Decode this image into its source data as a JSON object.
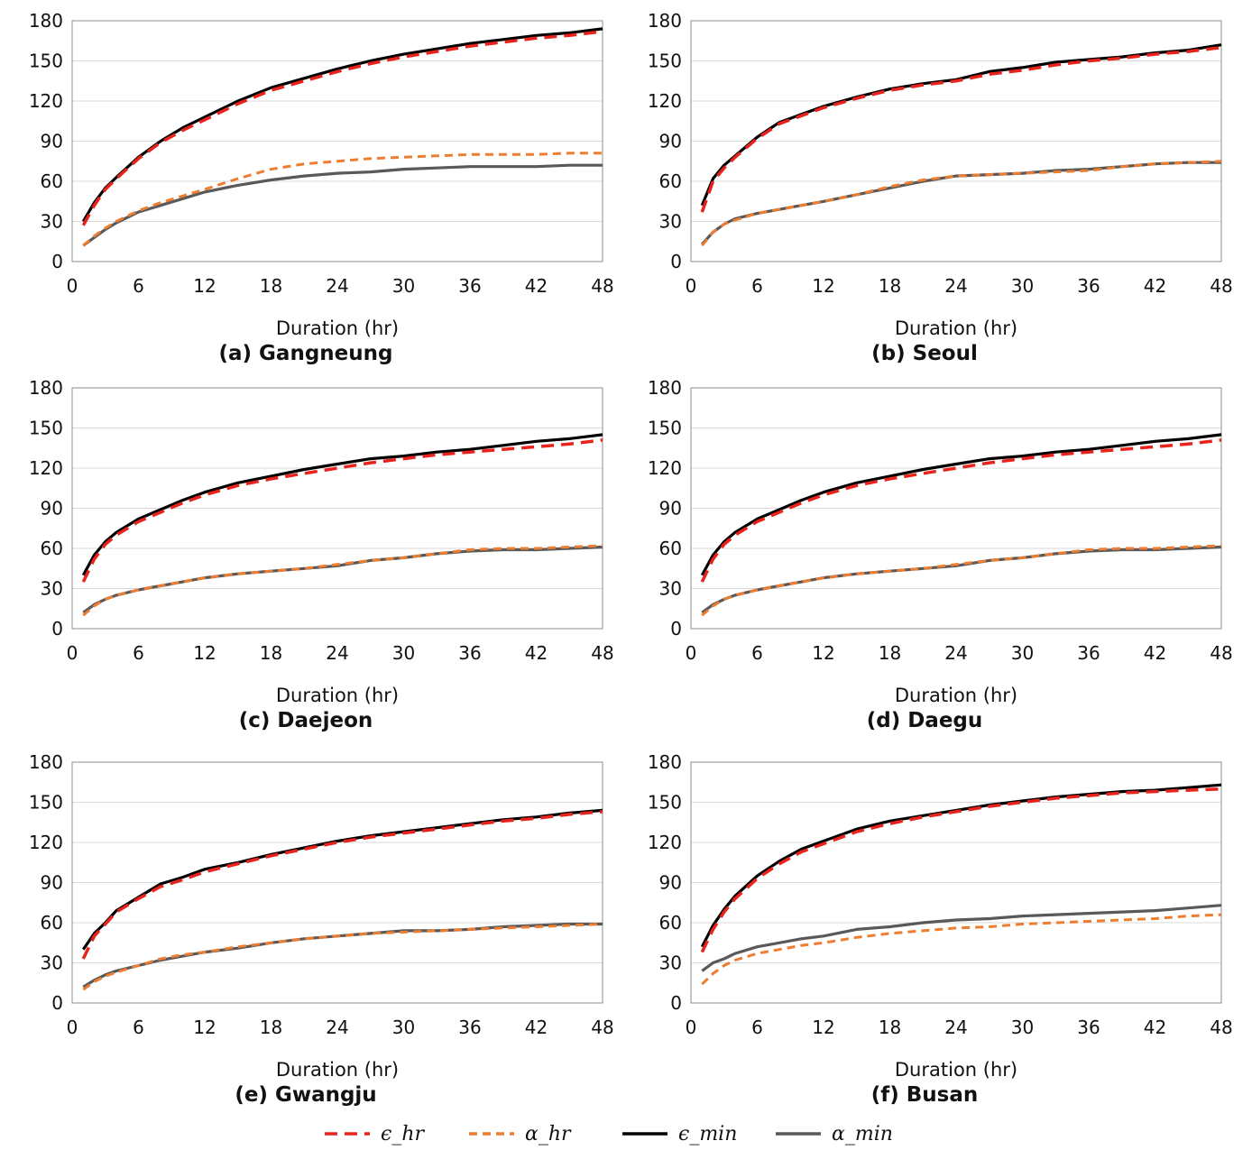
{
  "legend": {
    "items": [
      {
        "label": "ϵ_hr",
        "series": "eps_hr"
      },
      {
        "label": "α_hr",
        "series": "alpha_hr"
      },
      {
        "label": "ϵ_min",
        "series": "eps_min"
      },
      {
        "label": "α_min",
        "series": "alpha_min"
      }
    ],
    "placement": "bottom"
  },
  "series_styles": {
    "eps_hr": {
      "color": "#e8231c",
      "dash": "dashed"
    },
    "alpha_hr": {
      "color": "#ed7d31",
      "dash": "dashed"
    },
    "eps_min": {
      "color": "#000000",
      "dash": "solid"
    },
    "alpha_min": {
      "color": "#595959",
      "dash": "solid"
    }
  },
  "chart_data": [
    {
      "type": "line",
      "title": "(a) Gangneung",
      "xlabel": "Duration (hr)",
      "ylabel": "",
      "xlim": [
        0,
        48
      ],
      "ylim": [
        0,
        180
      ],
      "xticks": [
        0,
        6,
        12,
        18,
        24,
        30,
        36,
        42,
        48
      ],
      "yticks": [
        0,
        30,
        60,
        90,
        120,
        150,
        180
      ],
      "grid": true,
      "x": [
        1,
        2,
        3,
        4,
        6,
        8,
        10,
        12,
        15,
        18,
        21,
        24,
        27,
        30,
        33,
        36,
        39,
        42,
        45,
        48
      ],
      "series": [
        {
          "key": "eps_hr",
          "values": [
            27,
            42,
            54,
            62,
            77,
            89,
            98,
            106,
            118,
            128,
            135,
            142,
            148,
            153,
            157,
            161,
            164,
            167,
            169,
            172
          ]
        },
        {
          "key": "alpha_hr",
          "values": [
            12,
            19,
            25,
            30,
            38,
            44,
            49,
            54,
            62,
            69,
            73,
            75,
            77,
            78,
            79,
            80,
            80,
            80,
            81,
            81
          ]
        },
        {
          "key": "eps_min",
          "values": [
            30,
            44,
            55,
            63,
            78,
            90,
            100,
            108,
            120,
            130,
            137,
            144,
            150,
            155,
            159,
            163,
            166,
            169,
            171,
            174
          ]
        },
        {
          "key": "alpha_min",
          "values": [
            12,
            18,
            24,
            29,
            37,
            42,
            47,
            52,
            57,
            61,
            64,
            66,
            67,
            69,
            70,
            71,
            71,
            71,
            72,
            72
          ]
        }
      ]
    },
    {
      "type": "line",
      "title": "(b) Seoul",
      "xlabel": "Duration (hr)",
      "ylabel": "",
      "xlim": [
        0,
        48
      ],
      "ylim": [
        0,
        180
      ],
      "xticks": [
        0,
        6,
        12,
        18,
        24,
        30,
        36,
        42,
        48
      ],
      "yticks": [
        0,
        30,
        60,
        90,
        120,
        150,
        180
      ],
      "grid": true,
      "x": [
        1,
        2,
        3,
        4,
        6,
        8,
        10,
        12,
        15,
        18,
        21,
        24,
        27,
        30,
        33,
        36,
        39,
        42,
        45,
        48
      ],
      "series": [
        {
          "key": "eps_hr",
          "values": [
            37,
            60,
            70,
            78,
            92,
            103,
            109,
            115,
            122,
            128,
            132,
            135,
            140,
            143,
            147,
            150,
            152,
            155,
            157,
            160
          ]
        },
        {
          "key": "alpha_hr",
          "values": [
            12,
            22,
            28,
            31,
            36,
            39,
            42,
            45,
            50,
            56,
            61,
            64,
            65,
            66,
            67,
            68,
            71,
            73,
            74,
            75
          ]
        },
        {
          "key": "eps_min",
          "values": [
            42,
            62,
            72,
            79,
            93,
            104,
            110,
            116,
            123,
            129,
            133,
            136,
            142,
            145,
            149,
            151,
            153,
            156,
            158,
            162
          ]
        },
        {
          "key": "alpha_min",
          "values": [
            13,
            22,
            28,
            32,
            36,
            39,
            42,
            45,
            50,
            55,
            60,
            64,
            65,
            66,
            68,
            69,
            71,
            73,
            74,
            74
          ]
        }
      ]
    },
    {
      "type": "line",
      "title": "(c) Daejeon",
      "xlabel": "Duration (hr)",
      "ylabel": "",
      "xlim": [
        0,
        48
      ],
      "ylim": [
        0,
        180
      ],
      "xticks": [
        0,
        6,
        12,
        18,
        24,
        30,
        36,
        42,
        48
      ],
      "yticks": [
        0,
        30,
        60,
        90,
        120,
        150,
        180
      ],
      "grid": true,
      "x": [
        1,
        2,
        3,
        4,
        6,
        8,
        10,
        12,
        15,
        18,
        21,
        24,
        27,
        30,
        33,
        36,
        39,
        42,
        45,
        48
      ],
      "series": [
        {
          "key": "eps_hr",
          "values": [
            35,
            52,
            63,
            70,
            80,
            87,
            94,
            100,
            107,
            112,
            116,
            120,
            124,
            127,
            130,
            132,
            134,
            136,
            138,
            141
          ]
        },
        {
          "key": "alpha_hr",
          "values": [
            10,
            17,
            22,
            25,
            29,
            32,
            35,
            38,
            41,
            43,
            45,
            48,
            51,
            53,
            56,
            59,
            60,
            60,
            61,
            62
          ]
        },
        {
          "key": "eps_min",
          "values": [
            40,
            55,
            65,
            72,
            82,
            89,
            96,
            102,
            109,
            114,
            119,
            123,
            127,
            129,
            132,
            134,
            137,
            140,
            142,
            145
          ]
        },
        {
          "key": "alpha_min",
          "values": [
            12,
            18,
            22,
            25,
            29,
            32,
            35,
            38,
            41,
            43,
            45,
            47,
            51,
            53,
            56,
            58,
            59,
            59,
            60,
            61
          ]
        }
      ]
    },
    {
      "type": "line",
      "title": "(d) Daegu",
      "xlabel": "Duration (hr)",
      "ylabel": "",
      "xlim": [
        0,
        48
      ],
      "ylim": [
        0,
        180
      ],
      "xticks": [
        0,
        6,
        12,
        18,
        24,
        30,
        36,
        42,
        48
      ],
      "yticks": [
        0,
        30,
        60,
        90,
        120,
        150,
        180
      ],
      "grid": true,
      "x": [
        1,
        2,
        3,
        4,
        6,
        8,
        10,
        12,
        15,
        18,
        21,
        24,
        27,
        30,
        33,
        36,
        39,
        42,
        45,
        48
      ],
      "series": [
        {
          "key": "eps_hr",
          "values": [
            35,
            52,
            63,
            70,
            80,
            87,
            94,
            100,
            107,
            112,
            116,
            120,
            124,
            127,
            130,
            132,
            134,
            136,
            138,
            141
          ]
        },
        {
          "key": "alpha_hr",
          "values": [
            10,
            17,
            22,
            25,
            29,
            32,
            35,
            38,
            41,
            43,
            45,
            48,
            51,
            53,
            56,
            59,
            60,
            60,
            61,
            62
          ]
        },
        {
          "key": "eps_min",
          "values": [
            40,
            55,
            65,
            72,
            82,
            89,
            96,
            102,
            109,
            114,
            119,
            123,
            127,
            129,
            132,
            134,
            137,
            140,
            142,
            145
          ]
        },
        {
          "key": "alpha_min",
          "values": [
            12,
            18,
            22,
            25,
            29,
            32,
            35,
            38,
            41,
            43,
            45,
            47,
            51,
            53,
            56,
            58,
            59,
            59,
            60,
            61
          ]
        }
      ]
    },
    {
      "type": "line",
      "title": "(e) Gwangju",
      "xlabel": "Duration (hr)",
      "ylabel": "",
      "xlim": [
        0,
        48
      ],
      "ylim": [
        0,
        180
      ],
      "xticks": [
        0,
        6,
        12,
        18,
        24,
        30,
        36,
        42,
        48
      ],
      "yticks": [
        0,
        30,
        60,
        90,
        120,
        150,
        180
      ],
      "grid": true,
      "x": [
        1,
        2,
        3,
        4,
        6,
        8,
        10,
        12,
        15,
        18,
        21,
        24,
        27,
        30,
        33,
        36,
        39,
        42,
        45,
        48
      ],
      "series": [
        {
          "key": "eps_hr",
          "values": [
            33,
            50,
            59,
            68,
            78,
            87,
            92,
            98,
            104,
            110,
            115,
            120,
            124,
            127,
            130,
            133,
            136,
            138,
            141,
            143
          ]
        },
        {
          "key": "alpha_hr",
          "values": [
            10,
            16,
            20,
            23,
            28,
            33,
            36,
            38,
            42,
            45,
            48,
            50,
            52,
            53,
            54,
            55,
            56,
            57,
            58,
            59
          ]
        },
        {
          "key": "eps_min",
          "values": [
            40,
            52,
            60,
            69,
            79,
            89,
            94,
            100,
            105,
            111,
            116,
            121,
            125,
            128,
            131,
            134,
            137,
            139,
            142,
            144
          ]
        },
        {
          "key": "alpha_min",
          "values": [
            12,
            17,
            21,
            24,
            28,
            32,
            35,
            38,
            41,
            45,
            48,
            50,
            52,
            54,
            54,
            55,
            57,
            58,
            59,
            59
          ]
        }
      ]
    },
    {
      "type": "line",
      "title": "(f) Busan",
      "xlabel": "Duration (hr)",
      "ylabel": "",
      "xlim": [
        0,
        48
      ],
      "ylim": [
        0,
        180
      ],
      "xticks": [
        0,
        6,
        12,
        18,
        24,
        30,
        36,
        42,
        48
      ],
      "yticks": [
        0,
        30,
        60,
        90,
        120,
        150,
        180
      ],
      "grid": true,
      "x": [
        1,
        2,
        3,
        4,
        6,
        8,
        10,
        12,
        15,
        18,
        21,
        24,
        27,
        30,
        33,
        36,
        39,
        42,
        45,
        48
      ],
      "series": [
        {
          "key": "eps_hr",
          "values": [
            38,
            55,
            68,
            78,
            93,
            104,
            113,
            119,
            128,
            134,
            139,
            143,
            147,
            150,
            153,
            155,
            157,
            158,
            159,
            160
          ]
        },
        {
          "key": "alpha_hr",
          "values": [
            14,
            22,
            28,
            32,
            37,
            40,
            43,
            45,
            49,
            52,
            54,
            56,
            57,
            59,
            60,
            61,
            62,
            63,
            65,
            66
          ]
        },
        {
          "key": "eps_min",
          "values": [
            42,
            58,
            70,
            80,
            95,
            106,
            115,
            121,
            130,
            136,
            140,
            144,
            148,
            151,
            154,
            156,
            158,
            159,
            161,
            163
          ]
        },
        {
          "key": "alpha_min",
          "values": [
            24,
            30,
            33,
            37,
            42,
            45,
            48,
            50,
            55,
            57,
            60,
            62,
            63,
            65,
            66,
            67,
            68,
            69,
            71,
            73
          ]
        }
      ]
    }
  ]
}
